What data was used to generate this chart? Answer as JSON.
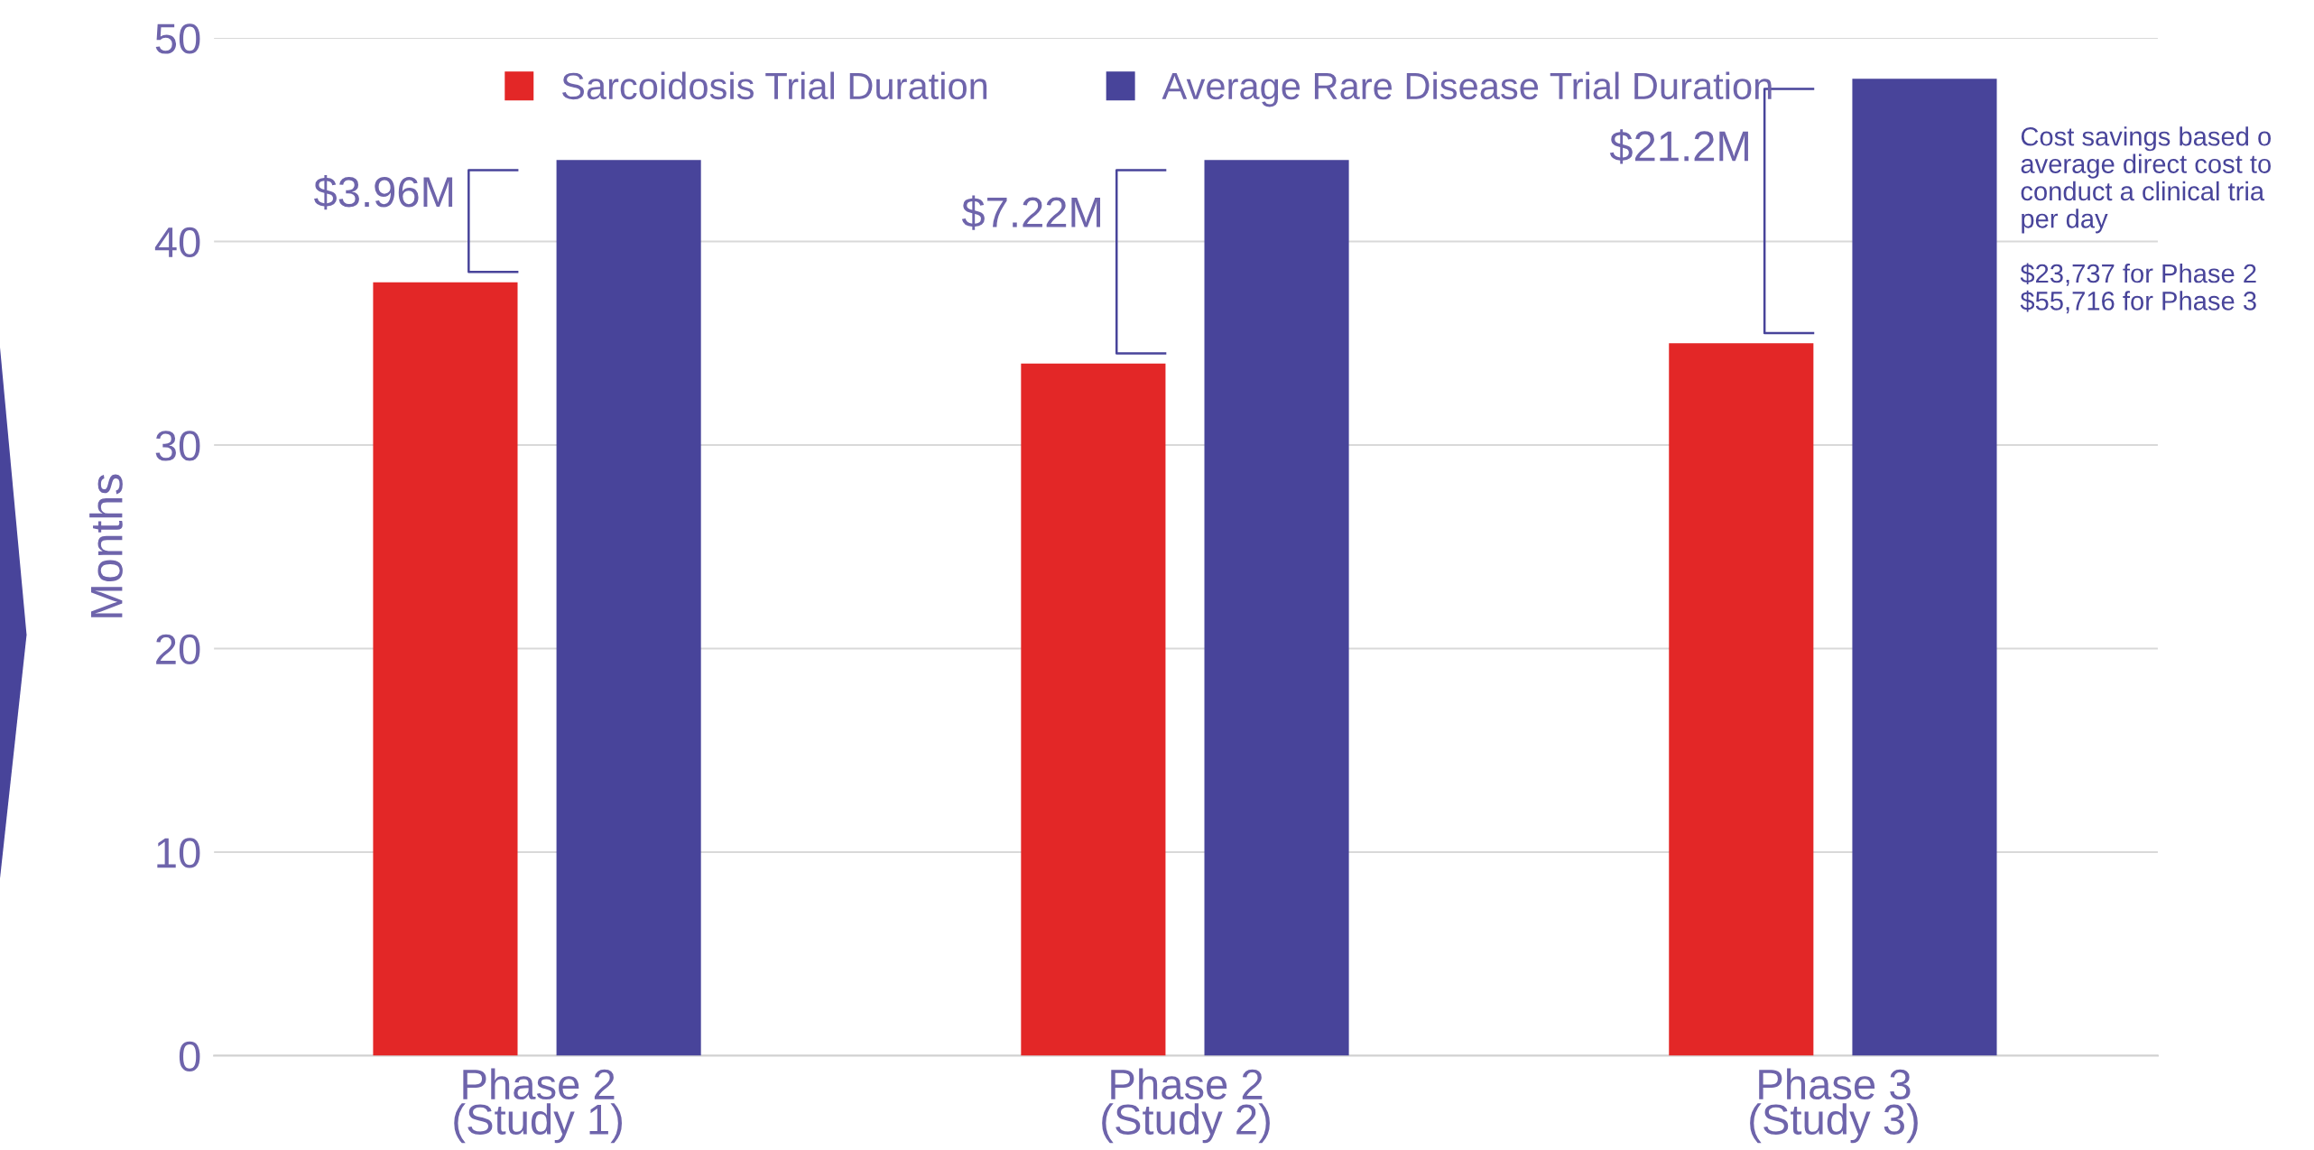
{
  "chart_data": {
    "type": "bar",
    "categories": [
      "Phase 2\n(Study 1)",
      "Phase 2\n(Study 2)",
      "Phase 3\n(Study 3)"
    ],
    "series": [
      {
        "name": "Sarcoidosis Trial Duration",
        "color": "#e32727",
        "values": [
          38,
          34,
          35
        ]
      },
      {
        "name": "Average Rare Disease Trial Duration",
        "color": "#48449a",
        "values": [
          44,
          44,
          48
        ]
      }
    ],
    "ylabel": "Months",
    "ylim": [
      0,
      50
    ],
    "yticks": [
      0,
      10,
      20,
      30,
      40,
      50
    ],
    "grid": "y",
    "legend": "top",
    "annotations": [
      "$3.96M",
      "$7.22M",
      "$21.2M",
      "Cost savings based o\naverage direct cost to\nconduct a clinical tria\nper day\n\n$23,737 for Phase 2\n$55,716 for Phase 3"
    ]
  }
}
